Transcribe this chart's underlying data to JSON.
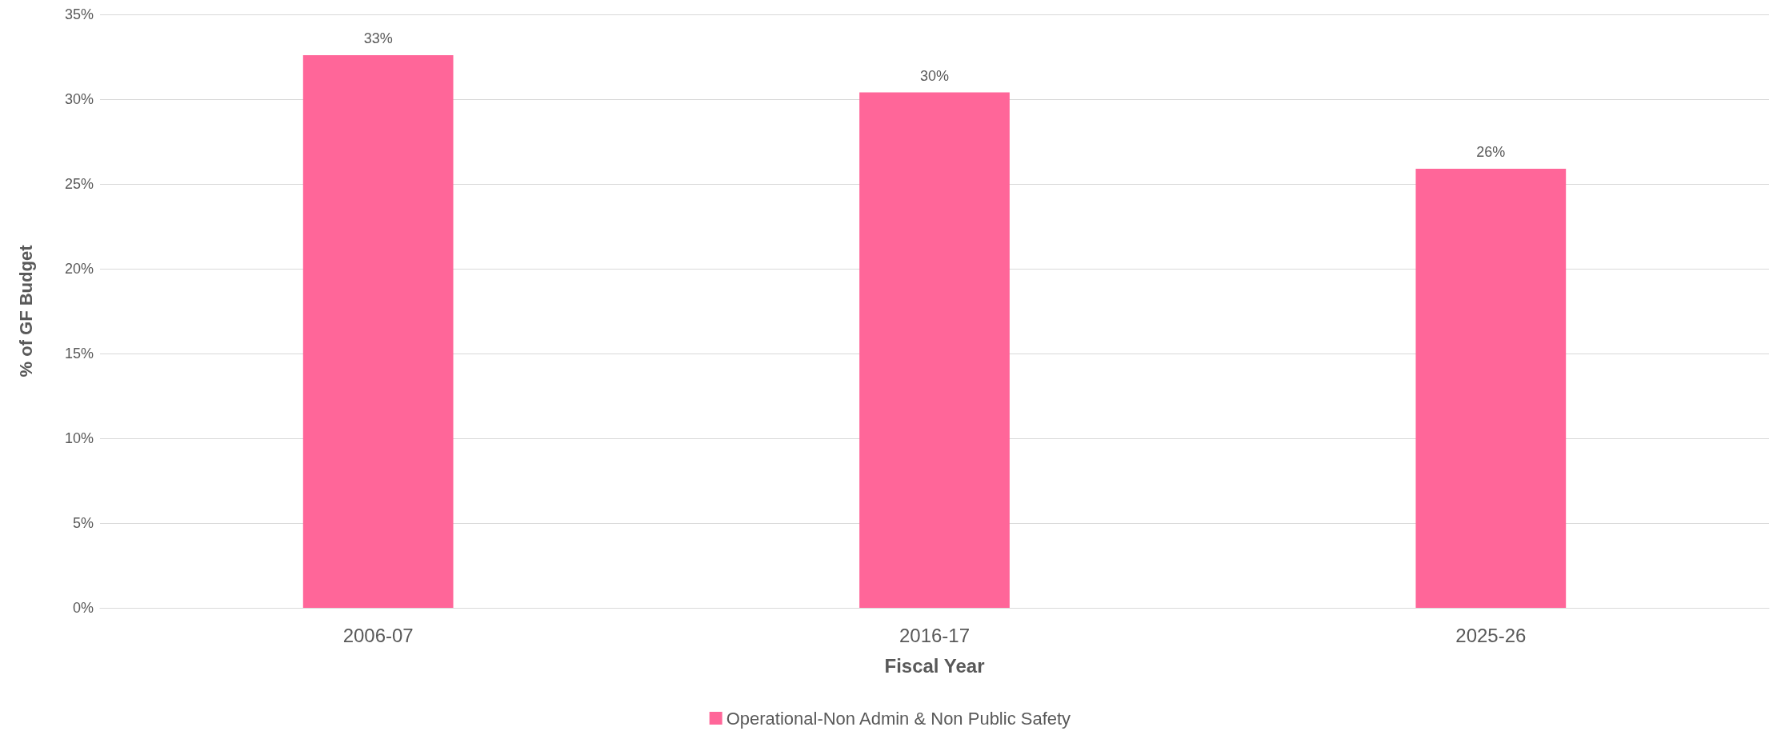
{
  "chart_data": {
    "type": "bar",
    "xlabel": "Fiscal Year",
    "ylabel": "% of GF Budget",
    "categories": [
      "2006-07",
      "2016-17",
      "2025-26"
    ],
    "series": [
      {
        "name": "Operational-Non Admin & Non Public Safety",
        "color": "#ff6699",
        "values": [
          32.6,
          30.4,
          25.9
        ],
        "value_labels": [
          "33%",
          "30%",
          "26%"
        ]
      }
    ],
    "ylim": [
      0,
      35
    ],
    "yticks": [
      {
        "value": 0,
        "label": "0%"
      },
      {
        "value": 5,
        "label": "5%"
      },
      {
        "value": 10,
        "label": "10%"
      },
      {
        "value": 15,
        "label": "15%"
      },
      {
        "value": 20,
        "label": "20%"
      },
      {
        "value": 25,
        "label": "25%"
      },
      {
        "value": 30,
        "label": "30%"
      },
      {
        "value": 35,
        "label": "35%"
      }
    ],
    "grid": "y",
    "legend": "bottom"
  }
}
